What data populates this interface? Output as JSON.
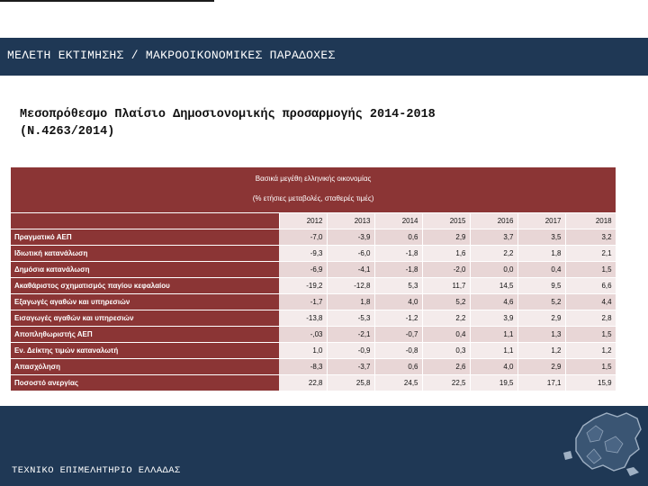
{
  "header": {
    "title": "ΜΕΛΕΤΗ ΕΚΤΙΜΗΣΗΣ / ΜΑΚΡΟΟΙΚΟΝΟΜΙΚΕΣ ΠΑΡΑΔΟΧΕΣ"
  },
  "slide": {
    "title_line1": "Μεσοπρόθεσμο Πλαίσιο Δημοσιονομικής προσαρμογής 2014-2018",
    "title_line2": "(Ν.4263/2014)"
  },
  "table": {
    "caption_line1": "Βασικά μεγέθη ελληνικής οικονομίας",
    "caption_line2": "(% ετήσιες μεταβολές, σταθερές τιμές)",
    "years": [
      "2012",
      "2013",
      "2014",
      "2015",
      "2016",
      "2017",
      "2018"
    ],
    "rows": [
      {
        "label": "Πραγματικό ΑΕΠ",
        "values": [
          "-7,0",
          "-3,9",
          "0,6",
          "2,9",
          "3,7",
          "3,5",
          "3,2"
        ]
      },
      {
        "label": "Ιδιωτική κατανάλωση",
        "values": [
          "-9,3",
          "-6,0",
          "-1,8",
          "1,6",
          "2,2",
          "1,8",
          "2,1"
        ]
      },
      {
        "label": "Δημόσια κατανάλωση",
        "values": [
          "-6,9",
          "-4,1",
          "-1,8",
          "-2,0",
          "0,0",
          "0,4",
          "1,5"
        ]
      },
      {
        "label": "Ακαθάριστος σχηματισμός παγίου κεφαλαίου",
        "values": [
          "-19,2",
          "-12,8",
          "5,3",
          "11,7",
          "14,5",
          "9,5",
          "6,6"
        ]
      },
      {
        "label": "Εξαγωγές αγαθών και υπηρεσιών",
        "values": [
          "-1,7",
          "1,8",
          "4,0",
          "5,2",
          "4,6",
          "5,2",
          "4,4"
        ]
      },
      {
        "label": "Εισαγωγές αγαθών και υπηρεσιών",
        "values": [
          "-13,8",
          "-5,3",
          "-1,2",
          "2,2",
          "3,9",
          "2,9",
          "2,8"
        ]
      },
      {
        "label": "Αποπληθωριστής ΑΕΠ",
        "values": [
          "-,03",
          "-2,1",
          "-0,7",
          "0,4",
          "1,1",
          "1,3",
          "1,5"
        ]
      },
      {
        "label": "Εν. Δείκτης τιμών καταναλωτή",
        "values": [
          "1,0",
          "-0,9",
          "-0,8",
          "0,3",
          "1,1",
          "1,2",
          "1,2"
        ]
      },
      {
        "label": "Απασχόληση",
        "values": [
          "-8,3",
          "-3,7",
          "0,6",
          "2,6",
          "4,0",
          "2,9",
          "1,5"
        ]
      },
      {
        "label": "Ποσοστό ανεργίας",
        "values": [
          "22,8",
          "25,8",
          "24,5",
          "22,5",
          "19,5",
          "17,1",
          "15,9"
        ]
      }
    ]
  },
  "footer": {
    "text": "ΤΕΧΝΙΚΟ ΕΠΙΜΕΛΗΤΗΡΙΟ ΕΛΛΑΔΑΣ",
    "logo_icon": "greece-map-icon"
  },
  "colors": {
    "navy": "#1f3855",
    "table_red": "#8b3535",
    "cell_light": "#f4ebeb",
    "cell_dark": "#e8d6d6"
  }
}
